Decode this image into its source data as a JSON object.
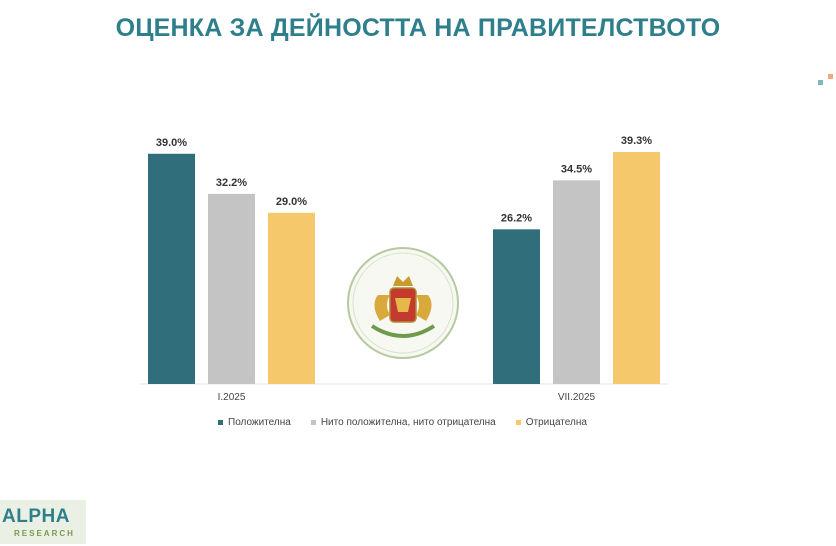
{
  "title": "ОЦЕНКА ЗА ДЕЙНОСТТА НА ПРАВИТЕЛСТВОТО",
  "colors": {
    "title": "#2e7f8b",
    "positive": "#2f6e7a",
    "neutral": "#c4c4c4",
    "negative": "#f5c96b",
    "emblem_ring": "#b6c9a0"
  },
  "logo": {
    "main": "ALPHA",
    "sub": "RESEARCH"
  },
  "chart_data": {
    "type": "bar",
    "categories": [
      "I.2025",
      "VII.2025"
    ],
    "series": [
      {
        "name": "Положителна",
        "values": [
          39.0,
          26.2
        ],
        "labels": [
          "39.0%",
          "26.2%"
        ],
        "color": "#2f6e7a"
      },
      {
        "name": "Нито положителна, нито отрицателна",
        "values": [
          32.2,
          34.5
        ],
        "labels": [
          "32.2%",
          "34.5%"
        ],
        "color": "#c4c4c4"
      },
      {
        "name": "Отрицателна",
        "values": [
          29.0,
          39.3
        ],
        "labels": [
          "29.0%",
          "39.3%"
        ],
        "color": "#f5c96b"
      }
    ],
    "ylim": [
      0,
      39.3
    ],
    "grid": false,
    "legend": "bottom"
  }
}
